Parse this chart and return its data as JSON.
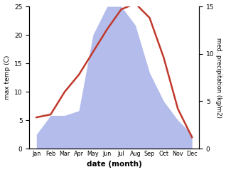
{
  "months": [
    "Jan",
    "Feb",
    "Mar",
    "Apr",
    "May",
    "Jun",
    "Jul",
    "Aug",
    "Sep",
    "Oct",
    "Nov",
    "Dec"
  ],
  "temp": [
    5.5,
    6.0,
    10.0,
    13.0,
    17.0,
    21.0,
    24.5,
    25.5,
    23.0,
    16.0,
    7.0,
    2.0
  ],
  "precip": [
    1.5,
    3.5,
    3.5,
    4.0,
    12.0,
    15.0,
    15.0,
    13.0,
    8.0,
    5.0,
    3.0,
    1.5
  ],
  "temp_color": "#c0392b",
  "precip_color_fill": "#b3bceb",
  "temp_ylim": [
    0,
    25
  ],
  "precip_ylim": [
    0,
    15
  ],
  "temp_scale_max": 25,
  "precip_scale_max": 15,
  "xlabel": "date (month)",
  "ylabel_left": "max temp (C)",
  "ylabel_right": "med. precipitation (kg/m2)",
  "temp_linewidth": 1.8,
  "bg_color": "#ffffff"
}
